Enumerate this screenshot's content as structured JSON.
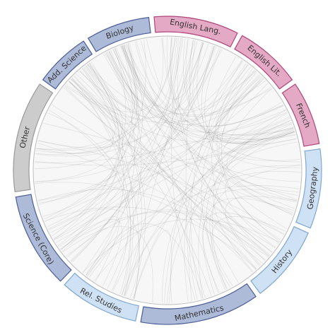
{
  "diagram": {
    "type": "chord",
    "segments": [
      {
        "label": "Biology",
        "start_deg": -31,
        "end_deg": -7,
        "fill": "#aebbd8",
        "stroke": "#4a5d96"
      },
      {
        "label": "English Lang.",
        "start_deg": -5,
        "end_deg": 27,
        "fill": "#e3a9c5",
        "stroke": "#b0457a"
      },
      {
        "label": "English Lit.",
        "start_deg": 29,
        "end_deg": 54,
        "fill": "#e3a9c5",
        "stroke": "#b0457a"
      },
      {
        "label": "French",
        "start_deg": 56,
        "end_deg": 80,
        "fill": "#e3a9c5",
        "stroke": "#b0457a"
      },
      {
        "label": "Geography",
        "start_deg": 82,
        "end_deg": 112,
        "fill": "#cfe1f4",
        "stroke": "#7fa7cf"
      },
      {
        "label": "History",
        "start_deg": 114,
        "end_deg": 143,
        "fill": "#cfe1f4",
        "stroke": "#7fa7cf"
      },
      {
        "label": "Mathematics",
        "start_deg": 145,
        "end_deg": 190,
        "fill": "#aebbd8",
        "stroke": "#4a5d96"
      },
      {
        "label": "Rel. Studies",
        "start_deg": 192,
        "end_deg": 222,
        "fill": "#cfe1f4",
        "stroke": "#7fa7cf"
      },
      {
        "label": "Science (Core)",
        "start_deg": 224,
        "end_deg": 260,
        "fill": "#aebbd8",
        "stroke": "#4a5d96"
      },
      {
        "label": "Other",
        "start_deg": 262,
        "end_deg": 304,
        "fill": "#cccccc",
        "stroke": "#999999"
      },
      {
        "label": "Add. Science",
        "start_deg": 306,
        "end_deg": 327,
        "fill": "#aebbd8",
        "stroke": "#4a5d96"
      }
    ],
    "colors": {
      "background_disc": "#f7f7f7",
      "chord_stroke": "#555555",
      "segment_stroke_width": 1.2
    }
  }
}
